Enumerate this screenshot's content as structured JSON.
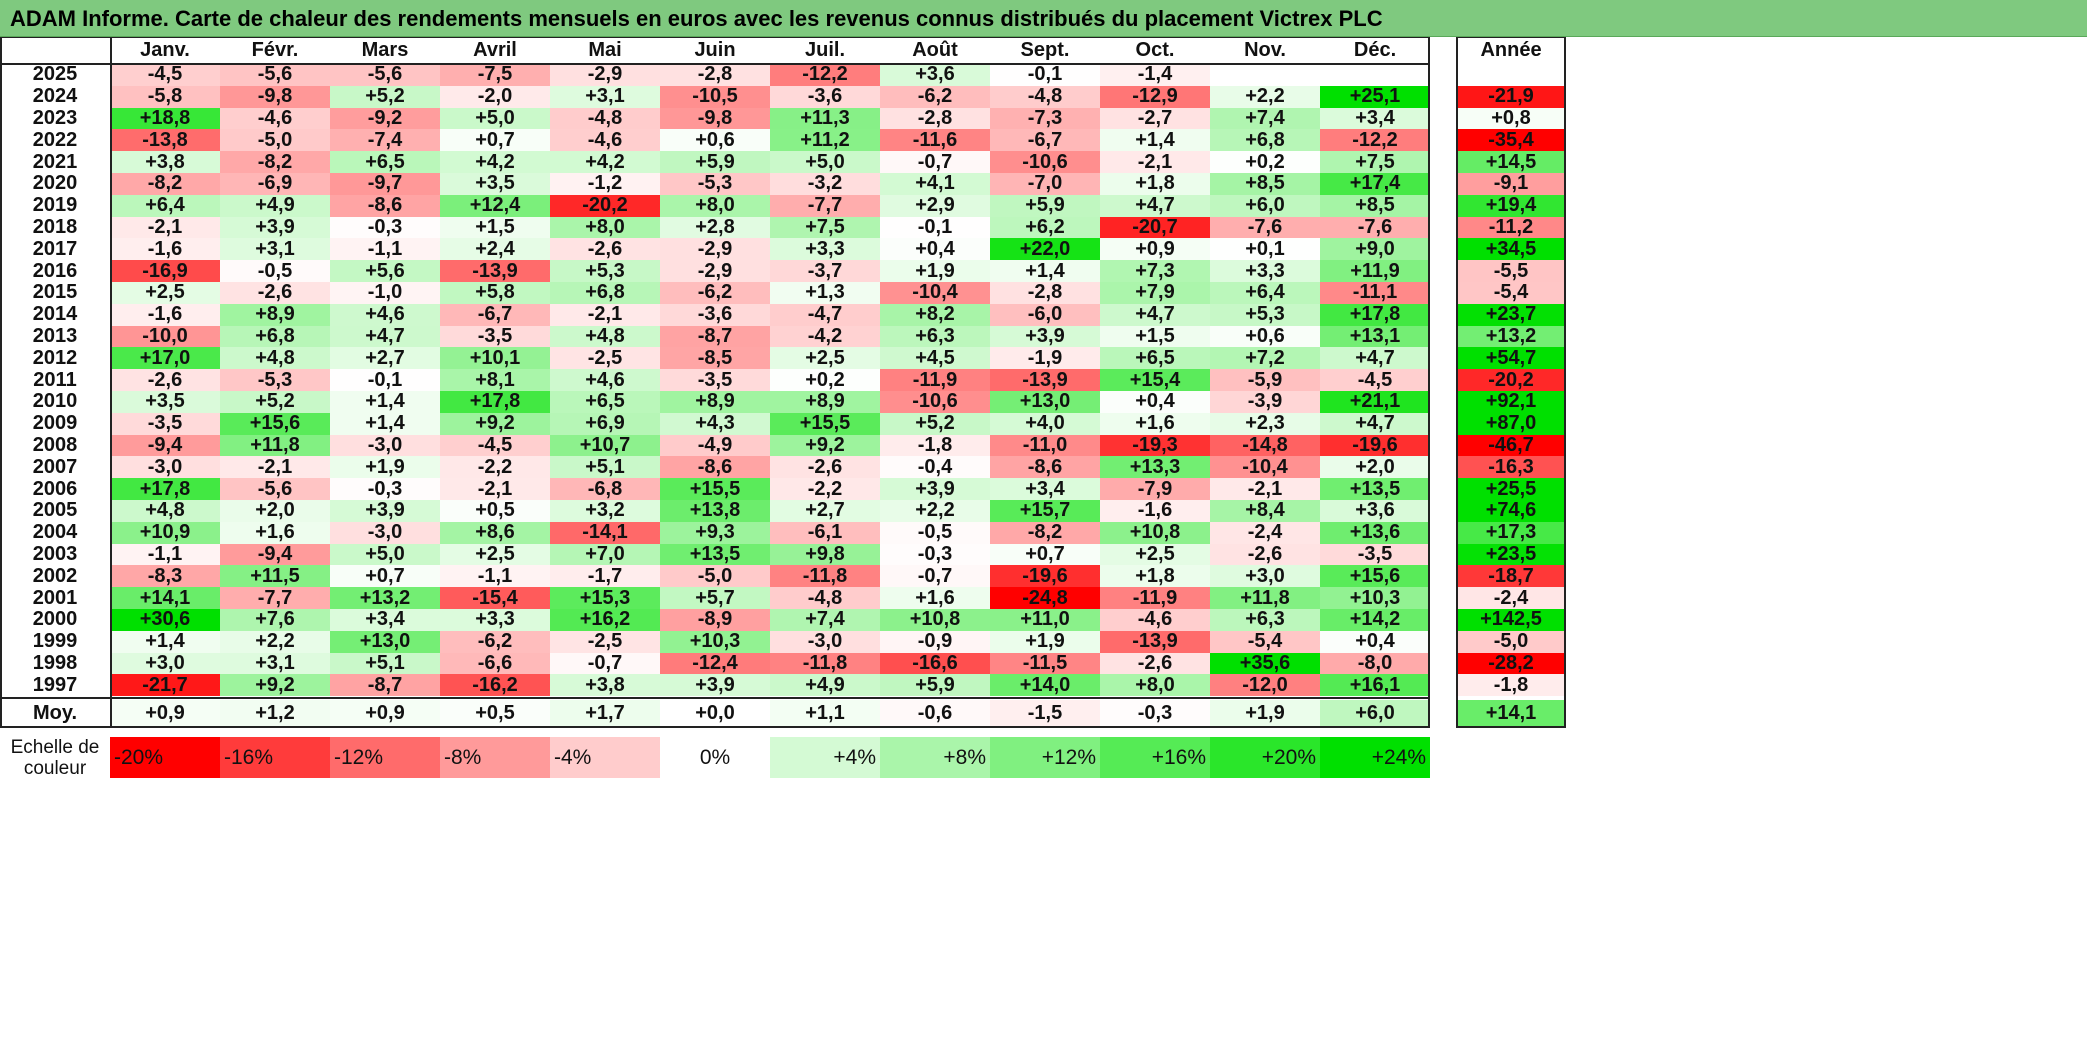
{
  "title": "ADAM Informe. Carte de chaleur des rendements mensuels en euros avec les revenus connus distribués du placement Victrex PLC",
  "chart_data": {
    "type": "heatmap",
    "title": "ADAM Informe. Carte de chaleur des rendements mensuels en euros avec les revenus connus distribués du placement Victrex PLC",
    "columns": [
      "Janv.",
      "Févr.",
      "Mars",
      "Avril",
      "Mai",
      "Juin",
      "Juil.",
      "Août",
      "Sept.",
      "Oct.",
      "Nov.",
      "Déc."
    ],
    "year_column_label": "Année",
    "rows": [
      {
        "year": "2025",
        "values": [
          "-4,5",
          "-5,6",
          "-5,6",
          "-7,5",
          "-2,9",
          "-2,8",
          "-12,2",
          "+3,6",
          "-0,1",
          "-1,4",
          "",
          ""
        ],
        "annual": ""
      },
      {
        "year": "2024",
        "values": [
          "-5,8",
          "-9,8",
          "+5,2",
          "-2,0",
          "+3,1",
          "-10,5",
          "-3,6",
          "-6,2",
          "-4,8",
          "-12,9",
          "+2,2",
          "+25,1"
        ],
        "annual": "-21,9"
      },
      {
        "year": "2023",
        "values": [
          "+18,8",
          "-4,6",
          "-9,2",
          "+5,0",
          "-4,8",
          "-9,8",
          "+11,3",
          "-2,8",
          "-7,3",
          "-2,7",
          "+7,4",
          "+3,4"
        ],
        "annual": "+0,8"
      },
      {
        "year": "2022",
        "values": [
          "-13,8",
          "-5,0",
          "-7,4",
          "+0,7",
          "-4,6",
          "+0,6",
          "+11,2",
          "-11,6",
          "-6,7",
          "+1,4",
          "+6,8",
          "-12,2"
        ],
        "annual": "-35,4"
      },
      {
        "year": "2021",
        "values": [
          "+3,8",
          "-8,2",
          "+6,5",
          "+4,2",
          "+4,2",
          "+5,9",
          "+5,0",
          "-0,7",
          "-10,6",
          "-2,1",
          "+0,2",
          "+7,5"
        ],
        "annual": "+14,5"
      },
      {
        "year": "2020",
        "values": [
          "-8,2",
          "-6,9",
          "-9,7",
          "+3,5",
          "-1,2",
          "-5,3",
          "-3,2",
          "+4,1",
          "-7,0",
          "+1,8",
          "+8,5",
          "+17,4"
        ],
        "annual": "-9,1"
      },
      {
        "year": "2019",
        "values": [
          "+6,4",
          "+4,9",
          "-8,6",
          "+12,4",
          "-20,2",
          "+8,0",
          "-7,7",
          "+2,9",
          "+5,9",
          "+4,7",
          "+6,0",
          "+8,5"
        ],
        "annual": "+19,4"
      },
      {
        "year": "2018",
        "values": [
          "-2,1",
          "+3,9",
          "-0,3",
          "+1,5",
          "+8,0",
          "+2,8",
          "+7,5",
          "-0,1",
          "+6,2",
          "-20,7",
          "-7,6",
          "-7,6"
        ],
        "annual": "-11,2"
      },
      {
        "year": "2017",
        "values": [
          "-1,6",
          "+3,1",
          "-1,1",
          "+2,4",
          "-2,6",
          "-2,9",
          "+3,3",
          "+0,4",
          "+22,0",
          "+0,9",
          "+0,1",
          "+9,0"
        ],
        "annual": "+34,5"
      },
      {
        "year": "2016",
        "values": [
          "-16,9",
          "-0,5",
          "+5,6",
          "-13,9",
          "+5,3",
          "-2,9",
          "-3,7",
          "+1,9",
          "+1,4",
          "+7,3",
          "+3,3",
          "+11,9"
        ],
        "annual": "-5,5"
      },
      {
        "year": "2015",
        "values": [
          "+2,5",
          "-2,6",
          "-1,0",
          "+5,8",
          "+6,8",
          "-6,2",
          "+1,3",
          "-10,4",
          "-2,8",
          "+7,9",
          "+6,4",
          "-11,1"
        ],
        "annual": "-5,4"
      },
      {
        "year": "2014",
        "values": [
          "-1,6",
          "+8,9",
          "+4,6",
          "-6,7",
          "-2,1",
          "-3,6",
          "-4,7",
          "+8,2",
          "-6,0",
          "+4,7",
          "+5,3",
          "+17,8"
        ],
        "annual": "+23,7"
      },
      {
        "year": "2013",
        "values": [
          "-10,0",
          "+6,8",
          "+4,7",
          "-3,5",
          "+4,8",
          "-8,7",
          "-4,2",
          "+6,3",
          "+3,9",
          "+1,5",
          "+0,6",
          "+13,1"
        ],
        "annual": "+13,2"
      },
      {
        "year": "2012",
        "values": [
          "+17,0",
          "+4,8",
          "+2,7",
          "+10,1",
          "-2,5",
          "-8,5",
          "+2,5",
          "+4,5",
          "-1,9",
          "+6,5",
          "+7,2",
          "+4,7"
        ],
        "annual": "+54,7"
      },
      {
        "year": "2011",
        "values": [
          "-2,6",
          "-5,3",
          "-0,1",
          "+8,1",
          "+4,6",
          "-3,5",
          "+0,2",
          "-11,9",
          "-13,9",
          "+15,4",
          "-5,9",
          "-4,5"
        ],
        "annual": "-20,2"
      },
      {
        "year": "2010",
        "values": [
          "+3,5",
          "+5,2",
          "+1,4",
          "+17,8",
          "+6,5",
          "+8,9",
          "+8,9",
          "-10,6",
          "+13,0",
          "+0,4",
          "-3,9",
          "+21,1"
        ],
        "annual": "+92,1"
      },
      {
        "year": "2009",
        "values": [
          "-3,5",
          "+15,6",
          "+1,4",
          "+9,2",
          "+6,9",
          "+4,3",
          "+15,5",
          "+5,2",
          "+4,0",
          "+1,6",
          "+2,3",
          "+4,7"
        ],
        "annual": "+87,0"
      },
      {
        "year": "2008",
        "values": [
          "-9,4",
          "+11,8",
          "-3,0",
          "-4,5",
          "+10,7",
          "-4,9",
          "+9,2",
          "-1,8",
          "-11,0",
          "-19,3",
          "-14,8",
          "-19,6"
        ],
        "annual": "-46,7"
      },
      {
        "year": "2007",
        "values": [
          "-3,0",
          "-2,1",
          "+1,9",
          "-2,2",
          "+5,1",
          "-8,6",
          "-2,6",
          "-0,4",
          "-8,6",
          "+13,3",
          "-10,4",
          "+2,0"
        ],
        "annual": "-16,3"
      },
      {
        "year": "2006",
        "values": [
          "+17,8",
          "-5,6",
          "-0,3",
          "-2,1",
          "-6,8",
          "+15,5",
          "-2,2",
          "+3,9",
          "+3,4",
          "-7,9",
          "-2,1",
          "+13,5"
        ],
        "annual": "+25,5"
      },
      {
        "year": "2005",
        "values": [
          "+4,8",
          "+2,0",
          "+3,9",
          "+0,5",
          "+3,2",
          "+13,8",
          "+2,7",
          "+2,2",
          "+15,7",
          "-1,6",
          "+8,4",
          "+3,6"
        ],
        "annual": "+74,6"
      },
      {
        "year": "2004",
        "values": [
          "+10,9",
          "+1,6",
          "-3,0",
          "+8,6",
          "-14,1",
          "+9,3",
          "-6,1",
          "-0,5",
          "-8,2",
          "+10,8",
          "-2,4",
          "+13,6"
        ],
        "annual": "+17,3"
      },
      {
        "year": "2003",
        "values": [
          "-1,1",
          "-9,4",
          "+5,0",
          "+2,5",
          "+7,0",
          "+13,5",
          "+9,8",
          "-0,3",
          "+0,7",
          "+2,5",
          "-2,6",
          "-3,5"
        ],
        "annual": "+23,5"
      },
      {
        "year": "2002",
        "values": [
          "-8,3",
          "+11,5",
          "+0,7",
          "-1,1",
          "-1,7",
          "-5,0",
          "-11,8",
          "-0,7",
          "-19,6",
          "+1,8",
          "+3,0",
          "+15,6"
        ],
        "annual": "-18,7"
      },
      {
        "year": "2001",
        "values": [
          "+14,1",
          "-7,7",
          "+13,2",
          "-15,4",
          "+15,3",
          "+5,7",
          "-4,8",
          "+1,6",
          "-24,8",
          "-11,9",
          "+11,8",
          "+10,3"
        ],
        "annual": "-2,4"
      },
      {
        "year": "2000",
        "values": [
          "+30,6",
          "+7,6",
          "+3,4",
          "+3,3",
          "+16,2",
          "-8,9",
          "+7,4",
          "+10,8",
          "+11,0",
          "-4,6",
          "+6,3",
          "+14,2"
        ],
        "annual": "+142,5"
      },
      {
        "year": "1999",
        "values": [
          "+1,4",
          "+2,2",
          "+13,0",
          "-6,2",
          "-2,5",
          "+10,3",
          "-3,0",
          "-0,9",
          "+1,9",
          "-13,9",
          "-5,4",
          "+0,4"
        ],
        "annual": "-5,0"
      },
      {
        "year": "1998",
        "values": [
          "+3,0",
          "+3,1",
          "+5,1",
          "-6,6",
          "-0,7",
          "-12,4",
          "-11,8",
          "-16,6",
          "-11,5",
          "-2,6",
          "+35,6",
          "-8,0"
        ],
        "annual": "-28,2"
      },
      {
        "year": "1997",
        "values": [
          "-21,7",
          "+9,2",
          "-8,7",
          "-16,2",
          "+3,8",
          "+3,9",
          "+4,9",
          "+5,9",
          "+14,0",
          "+8,0",
          "-12,0",
          "+16,1"
        ],
        "annual": "-1,8"
      }
    ],
    "average": {
      "label": "Moy.",
      "values": [
        "+0,9",
        "+1,2",
        "+0,9",
        "+0,5",
        "+1,7",
        "+0,0",
        "+1,1",
        "-0,6",
        "-1,5",
        "-0,3",
        "+1,9",
        "+6,0"
      ],
      "annual": "+14,1"
    },
    "scale": {
      "label_line1": "Echelle de",
      "label_line2": "couleur",
      "items": [
        {
          "label": "-20%",
          "color": "#ff0000"
        },
        {
          "label": "-16%",
          "color": "#ff3b3b"
        },
        {
          "label": "-12%",
          "color": "#ff6b6b"
        },
        {
          "label": "-8%",
          "color": "#ff9a9a"
        },
        {
          "label": "-4%",
          "color": "#ffcccc"
        },
        {
          "label": "0%",
          "color": "#ffffff"
        },
        {
          "label": "+4%",
          "color": "#d4fad4"
        },
        {
          "label": "+8%",
          "color": "#aaf5aa"
        },
        {
          "label": "+12%",
          "color": "#80f080"
        },
        {
          "label": "+16%",
          "color": "#55eb55"
        },
        {
          "label": "+20%",
          "color": "#2ae62a"
        },
        {
          "label": "+24%",
          "color": "#00e000"
        }
      ]
    }
  }
}
